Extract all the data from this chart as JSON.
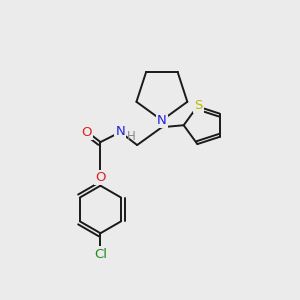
{
  "bg_color": "#ebebeb",
  "bond_color": "#1a1a1a",
  "atom_colors": {
    "N": "#2222dd",
    "O": "#dd2222",
    "S": "#bbbb00",
    "Cl": "#228822",
    "H": "#888888"
  },
  "font_size": 9.5,
  "line_width": 1.4,
  "figsize": [
    3.0,
    3.0
  ],
  "dpi": 100
}
